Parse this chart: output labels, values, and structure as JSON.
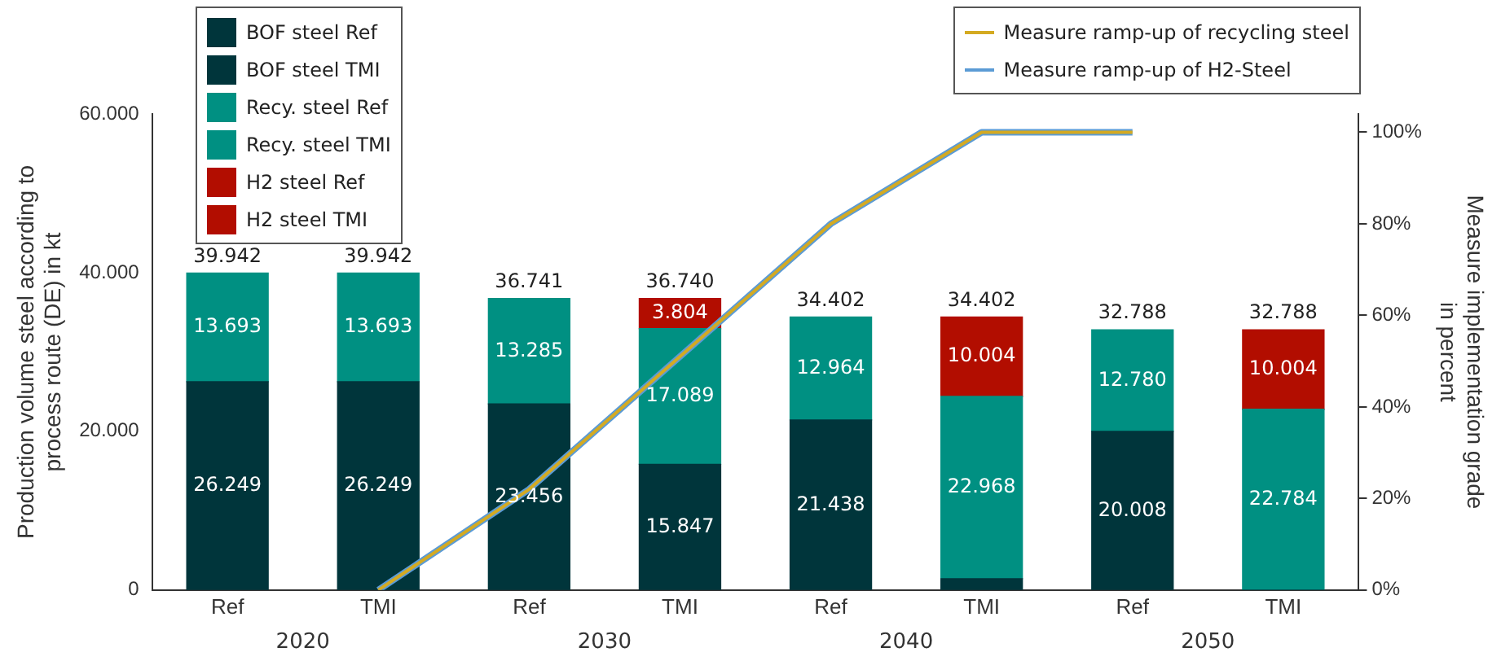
{
  "chart_data": {
    "type": "bar",
    "stacked": true,
    "ylabel": "Production volume steel according to process route (DE) in kt",
    "y2label": "Measure implementation grade in percent",
    "categories": [
      "Ref",
      "TMI",
      "Ref",
      "TMI",
      "Ref",
      "TMI",
      "Ref",
      "TMI"
    ],
    "series": [
      {
        "name": "BOF steel Ref",
        "color": "#00353b",
        "values": [
          26249,
          null,
          23456,
          null,
          21438,
          null,
          20008,
          null
        ],
        "value_labels": [
          "26.249",
          null,
          "23.456",
          null,
          "21.438",
          null,
          "20.008",
          null
        ]
      },
      {
        "name": "BOF steel TMI",
        "color": "#00353b",
        "values": [
          null,
          26249,
          null,
          15847,
          null,
          1430,
          null,
          0
        ],
        "value_labels": [
          null,
          "26.249",
          null,
          "15.847",
          null,
          null,
          null,
          null
        ]
      },
      {
        "name": "Recy. steel Ref",
        "color": "#009082",
        "values": [
          13693,
          null,
          13285,
          null,
          12964,
          null,
          12780,
          null
        ],
        "value_labels": [
          "13.693",
          null,
          "13.285",
          null,
          "12.964",
          null,
          "12.780",
          null
        ]
      },
      {
        "name": "Recy. steel TMI",
        "color": "#009082",
        "values": [
          null,
          13693,
          null,
          17089,
          null,
          22968,
          null,
          22784
        ],
        "value_labels": [
          null,
          "13.693",
          null,
          "17.089",
          null,
          "22.968",
          null,
          "22.784"
        ]
      },
      {
        "name": "H2 steel Ref",
        "color": "#b20d00",
        "values": [
          null,
          null,
          null,
          null,
          null,
          null,
          null,
          null
        ]
      },
      {
        "name": "H2 steel TMI",
        "color": "#b20d00",
        "values": [
          null,
          null,
          null,
          3804,
          null,
          10004,
          null,
          10004
        ],
        "value_labels": [
          null,
          null,
          null,
          "3.804",
          null,
          "10.004",
          null,
          "10.004"
        ]
      },
      {
        "name": "Measure ramp-up of H2-Steel",
        "type": "line",
        "axis": "y2",
        "color": "#5b9bd5",
        "values": [
          null,
          0,
          22,
          51,
          80,
          100,
          100,
          null
        ]
      },
      {
        "name": "Measure ramp-up of recycling steel",
        "type": "line",
        "axis": "y2",
        "color": "#d4aa22",
        "values": [
          null,
          0,
          22,
          51,
          80,
          100,
          100,
          null
        ]
      }
    ],
    "totals": [
      "39.942",
      "39.942",
      "36.741",
      "36.740",
      "34.402",
      "34.402",
      "32.788",
      "32.788"
    ],
    "ylim": [
      0,
      60000
    ],
    "yticks": [
      0,
      {
        "value": 20000,
        "label": "20.000"
      },
      {
        "value": 40000,
        "label": "40.000"
      },
      {
        "value": 60000,
        "label": "60.000"
      }
    ],
    "y2lim": [
      0,
      104
    ],
    "y2ticks": [
      {
        "value": 0,
        "label": "0%"
      },
      {
        "value": 20,
        "label": "20%"
      },
      {
        "value": 40,
        "label": "40%"
      },
      {
        "value": 60,
        "label": "60%"
      },
      {
        "value": 80,
        "label": "80%"
      },
      {
        "value": 100,
        "label": "100%"
      }
    ],
    "annotations": [
      "2020",
      "2030",
      "2040",
      "2050"
    ],
    "marker": "none",
    "line_style": "solid",
    "legend": "top"
  }
}
